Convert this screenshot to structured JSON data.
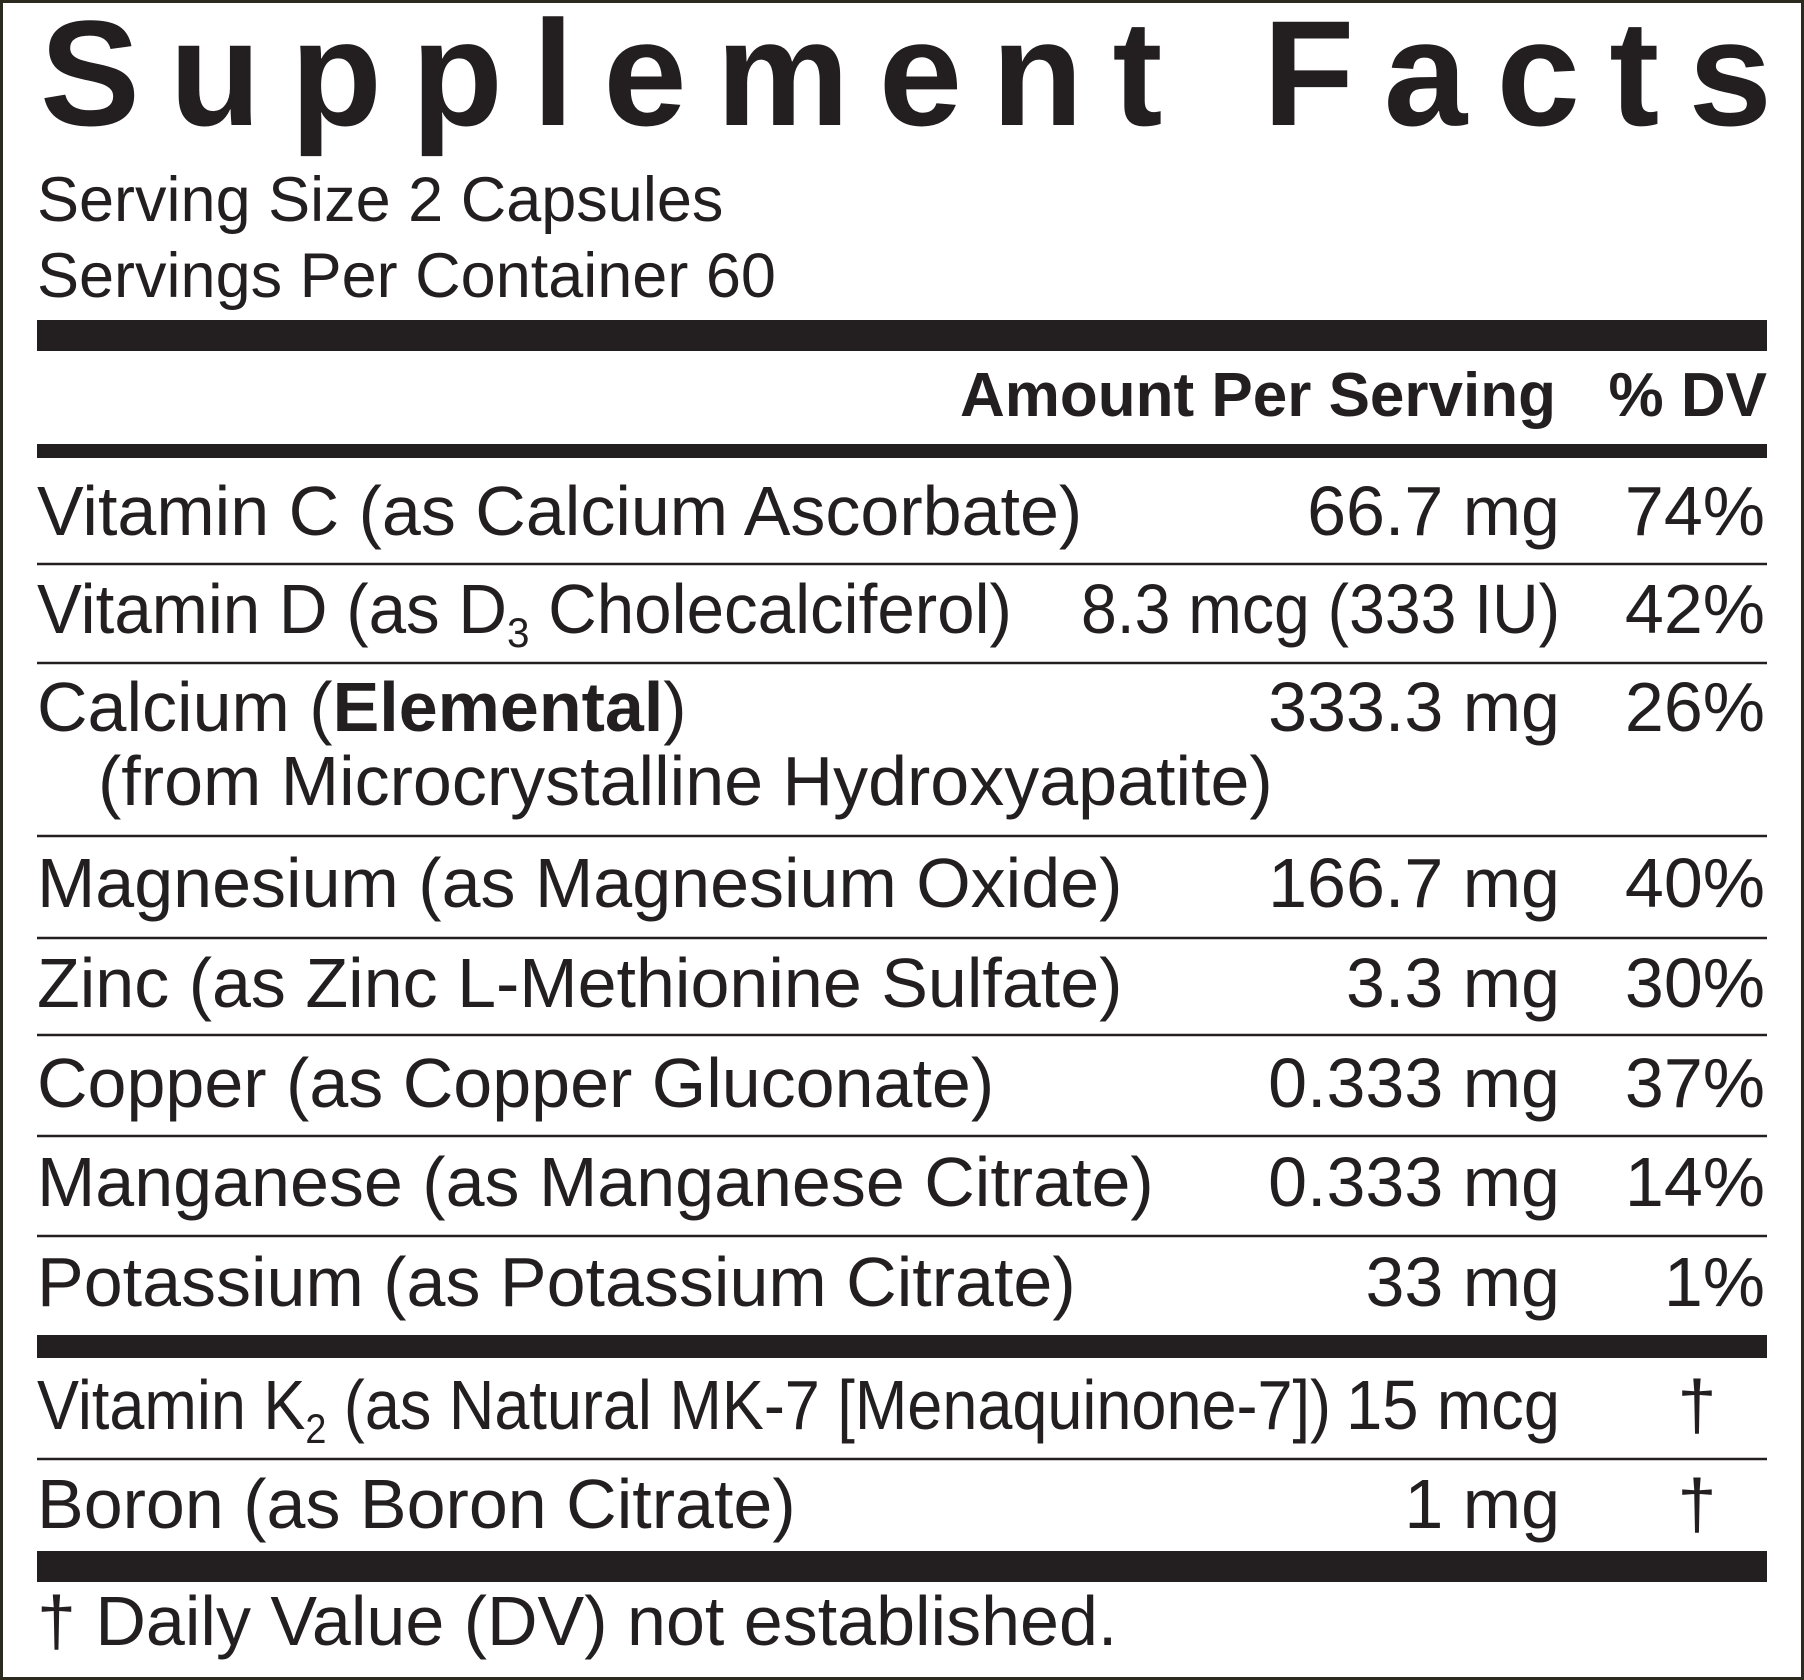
{
  "title": "Supplement Facts",
  "serving_size": "Serving Size 2 Capsules",
  "servings_per_container": "Servings Per Container 60",
  "header": {
    "amount": "Amount Per Serving",
    "dv": "% DV"
  },
  "rows": [
    {
      "name": [
        "Vitamin C (as Calcium Ascorbate)"
      ],
      "amount": "66.7 mg",
      "dv": "74%"
    },
    {
      "name": [
        "Vitamin D (as D",
        "3",
        " Cholecalciferol)"
      ],
      "amount": "8.3 mcg (333 IU)",
      "dv": "42%"
    },
    {
      "name": [
        "Calcium (",
        "Elemental",
        ")"
      ],
      "source": "(from Microcrystalline Hydroxyapatite)",
      "amount": "333.3 mg",
      "dv": "26%"
    },
    {
      "name": [
        "Magnesium (as Magnesium Oxide)"
      ],
      "amount": "166.7 mg",
      "dv": "40%"
    },
    {
      "name": [
        "Zinc (as Zinc L-Methionine Sulfate)"
      ],
      "amount": "3.3 mg",
      "dv": "30%"
    },
    {
      "name": [
        "Copper (as Copper Gluconate)"
      ],
      "amount": "0.333 mg",
      "dv": "37%"
    },
    {
      "name": [
        "Manganese (as Manganese Citrate)"
      ],
      "amount": "0.333 mg",
      "dv": "14%"
    },
    {
      "name": [
        "Potassium (as Potassium Citrate)"
      ],
      "amount": "33 mg",
      "dv": "1%"
    },
    {
      "name": [
        "Vitamin K",
        "2",
        " (as Natural MK-7 [Menaquinone-7])"
      ],
      "amount": "15 mcg",
      "dv": "†"
    },
    {
      "name": [
        "Boron (as Boron Citrate)"
      ],
      "amount": "1 mg",
      "dv": "†"
    }
  ],
  "footnote": "† Daily Value (DV) not established."
}
